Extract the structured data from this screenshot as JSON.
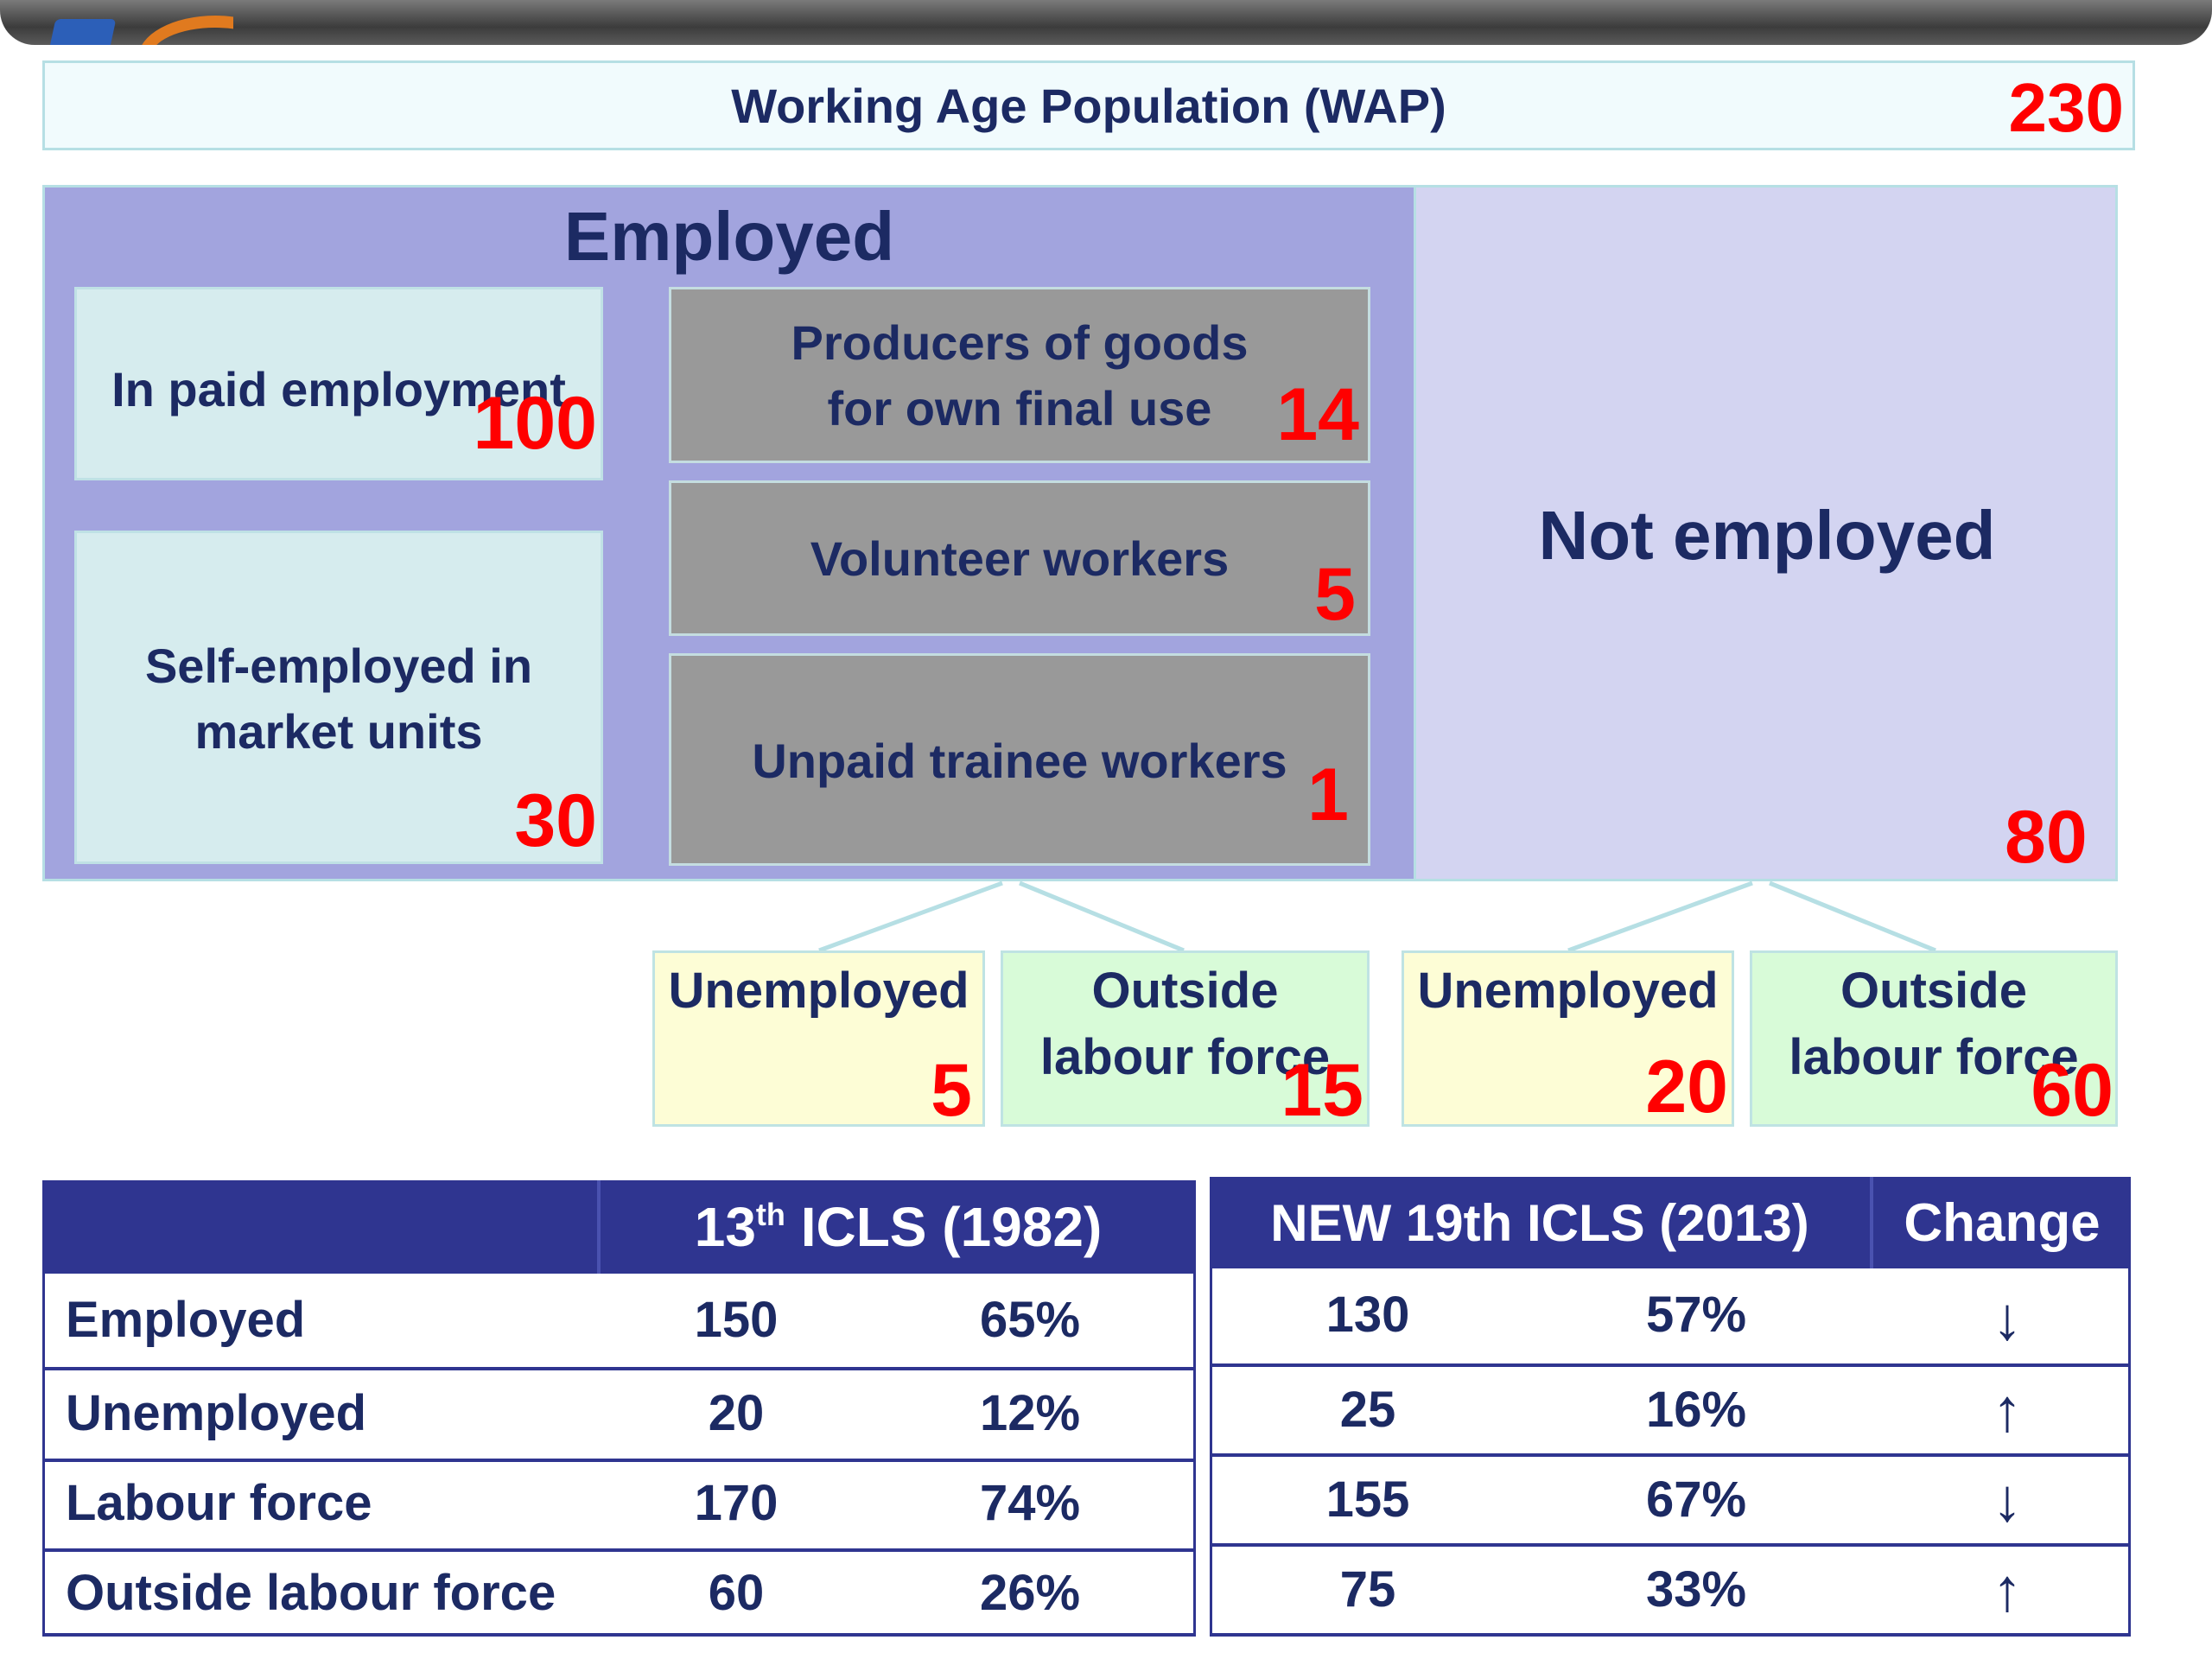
{
  "diagram": {
    "wap": {
      "label": "Working Age Population (WAP)",
      "value": "230"
    },
    "employed": {
      "title": "Employed",
      "paid": {
        "label": "In paid employment",
        "value": "100"
      },
      "self_employed": {
        "line1": "Self-employed in",
        "line2": "market units",
        "value": "30"
      },
      "producers": {
        "line1": "Producers of goods",
        "line2": "for own final use",
        "value": "14"
      },
      "volunteer": {
        "label": "Volunteer workers",
        "value": "5"
      },
      "trainee": {
        "label": "Unpaid trainee workers",
        "value": "1"
      }
    },
    "not_employed": {
      "title": "Not employed",
      "value": "80"
    },
    "split_employed": {
      "unemployed": {
        "label": "Unemployed",
        "value": "5"
      },
      "outside": {
        "line1": "Outside",
        "line2": "labour force",
        "value": "15"
      }
    },
    "split_not_employed": {
      "unemployed": {
        "label": "Unemployed",
        "value": "20"
      },
      "outside": {
        "line1": "Outside",
        "line2": "labour force",
        "value": "60"
      }
    }
  },
  "table_old": {
    "header_base": "13",
    "header_sup": "th",
    "header_rest": " ICLS (1982)",
    "rows": [
      {
        "label": "Employed",
        "count": "150",
        "pct": "65%"
      },
      {
        "label": "Unemployed",
        "count": "20",
        "pct": "12%"
      },
      {
        "label": "Labour force",
        "count": "170",
        "pct": "74%"
      },
      {
        "label": "Outside labour force",
        "count": "60",
        "pct": "26%"
      }
    ]
  },
  "table_new": {
    "header": "NEW 19th ICLS (2013)",
    "change_header": "Change",
    "rows": [
      {
        "count": "130",
        "pct": "57%",
        "change": "↓"
      },
      {
        "count": "25",
        "pct": "16%",
        "change": "↑"
      },
      {
        "count": "155",
        "pct": "67%",
        "change": "↓"
      },
      {
        "count": "75",
        "pct": "33%",
        "change": "↑"
      }
    ]
  },
  "colors": {
    "navy_text": "#1c2a63",
    "value_red": "#ff0000",
    "table_header": "#2f3590",
    "employed_bg": "#a2a4de",
    "not_employed_bg": "#d3d4f1"
  }
}
